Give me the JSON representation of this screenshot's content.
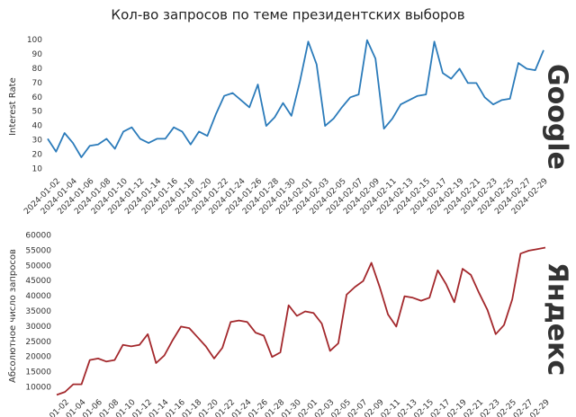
{
  "title": "Кол-во запросов по теме президентских выборов",
  "chart_data": [
    {
      "type": "line",
      "ylabel": "Interest Rate",
      "logo": "Google",
      "categories": [
        null,
        "2024-01-02",
        null,
        "2024-01-04",
        null,
        "2024-01-06",
        null,
        "2024-01-08",
        null,
        "2024-01-10",
        null,
        "2024-01-12",
        null,
        "2024-01-14",
        null,
        "2024-01-16",
        null,
        "2024-01-18",
        null,
        "2024-01-20",
        null,
        "2024-01-22",
        null,
        "2024-01-24",
        null,
        "2024-01-26",
        null,
        "2024-01-28",
        null,
        "2024-01-30",
        null,
        "2024-02-01",
        null,
        "2024-02-03",
        null,
        "2024-02-05",
        null,
        "2024-02-07",
        null,
        "2024-02-09",
        null,
        "2024-02-11",
        null,
        "2024-02-13",
        null,
        "2024-02-15",
        null,
        "2024-02-17",
        null,
        "2024-02-19",
        null,
        "2024-02-21",
        null,
        "2024-02-23",
        null,
        "2024-02-25",
        null,
        "2024-02-27",
        null,
        "2024-02-29"
      ],
      "series": [
        {
          "name": "Google",
          "color": "#2b7bba",
          "values": [
            31,
            22,
            35,
            28,
            18,
            26,
            27,
            31,
            24,
            36,
            39,
            31,
            28,
            31,
            31,
            39,
            36,
            27,
            36,
            33,
            48,
            61,
            63,
            58,
            53,
            69,
            40,
            46,
            56,
            47,
            71,
            99,
            83,
            40,
            45,
            53,
            60,
            62,
            100,
            87,
            38,
            45,
            55,
            58,
            61,
            62,
            99,
            77,
            73,
            80,
            70,
            70,
            60,
            55,
            58,
            59,
            84,
            80,
            79,
            93
          ]
        }
      ],
      "ylim": [
        5,
        102
      ],
      "yticks": [
        10,
        20,
        30,
        40,
        50,
        60,
        70,
        80,
        90,
        100
      ],
      "grid": false
    },
    {
      "type": "line",
      "ylabel": "Абсолютное число запросов",
      "logo": "Яндекс",
      "categories": [
        null,
        "2024-01-02",
        null,
        "2024-01-04",
        null,
        "2024-01-06",
        null,
        "2024-01-08",
        null,
        "2024-01-10",
        null,
        "2024-01-12",
        null,
        "2024-01-14",
        null,
        "2024-01-16",
        null,
        "2024-01-18",
        null,
        "2024-01-20",
        null,
        "2024-01-22",
        null,
        "2024-01-24",
        null,
        "2024-01-26",
        null,
        "2024-01-28",
        null,
        "2024-01-30",
        null,
        "2024-02-01",
        null,
        "2024-02-03",
        null,
        "2024-02-05",
        null,
        "2024-02-07",
        null,
        "2024-02-09",
        null,
        "2024-02-11",
        null,
        "2024-02-13",
        null,
        "2024-02-15",
        null,
        "2024-02-17",
        null,
        "2024-02-19",
        null,
        "2024-02-21",
        null,
        "2024-02-23",
        null,
        "2024-02-25",
        null,
        "2024-02-27",
        null,
        "2024-02-29"
      ],
      "series": [
        {
          "name": "Яндекс",
          "color": "#a3282c",
          "values": [
            7500,
            8500,
            11000,
            11000,
            19000,
            19500,
            18500,
            19000,
            24000,
            23500,
            24000,
            27500,
            18000,
            20500,
            25500,
            30000,
            29500,
            26500,
            23500,
            19500,
            23000,
            31500,
            32000,
            31500,
            28000,
            27000,
            20000,
            21500,
            37000,
            33500,
            35000,
            34500,
            31000,
            22000,
            24500,
            40500,
            43000,
            45000,
            51000,
            43000,
            34000,
            30000,
            40000,
            39500,
            38500,
            39500,
            48500,
            44000,
            38000,
            49000,
            47000,
            41000,
            35500,
            27500,
            30500,
            39000,
            54000,
            55000,
            55500,
            56000
          ]
        }
      ],
      "ylim": [
        5000,
        62000
      ],
      "yticks": [
        10000,
        15000,
        20000,
        25000,
        30000,
        35000,
        40000,
        45000,
        50000,
        55000,
        60000
      ],
      "grid": false
    }
  ]
}
